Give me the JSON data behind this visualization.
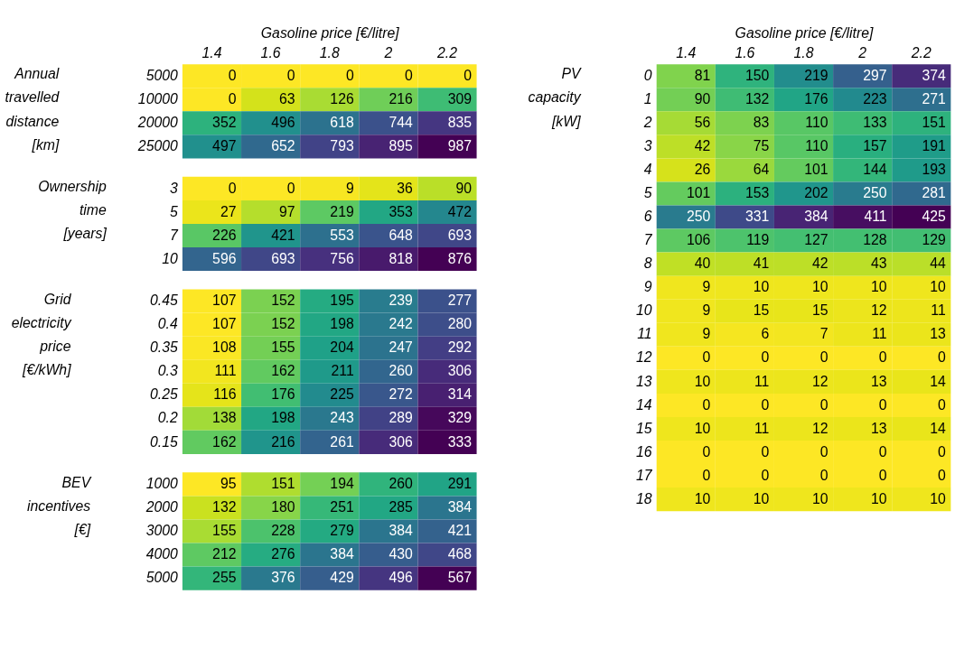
{
  "chart_data": [
    {
      "type": "heatmap",
      "xlabel": "Gasoline price [€/litre]",
      "ylabel": "Annual travelled distance [km]",
      "categories": [
        "1.4",
        "1.6",
        "1.8",
        "2",
        "2.2"
      ],
      "y_categories": [
        "5000",
        "10000",
        "20000",
        "25000"
      ],
      "data_labels": true,
      "cells": [
        [
          0,
          0,
          0,
          0,
          0
        ],
        [
          0,
          63,
          126,
          216,
          309
        ],
        [
          352,
          496,
          618,
          744,
          835
        ],
        [
          497,
          652,
          793,
          895,
          987
        ]
      ]
    },
    {
      "type": "heatmap",
      "ylabel": "Ownership time [years]",
      "categories": [
        "1.4",
        "1.6",
        "1.8",
        "2",
        "2.2"
      ],
      "y_categories": [
        "3",
        "5",
        "7",
        "10"
      ],
      "data_labels": true,
      "tick_labels": "y",
      "cells": [
        [
          0,
          0,
          9,
          36,
          90
        ],
        [
          27,
          97,
          219,
          353,
          472
        ],
        [
          226,
          421,
          553,
          648,
          693
        ],
        [
          596,
          693,
          756,
          818,
          876
        ]
      ]
    },
    {
      "type": "heatmap",
      "ylabel": "Grid electricity price [€/kWh]",
      "categories": [
        "1.4",
        "1.6",
        "1.8",
        "2",
        "2.2"
      ],
      "y_categories": [
        "0.45",
        "0.4",
        "0.35",
        "0.3",
        "0.25",
        "0.2",
        "0.15"
      ],
      "data_labels": true,
      "tick_labels": "y",
      "cells": [
        [
          107,
          152,
          195,
          239,
          277
        ],
        [
          107,
          152,
          198,
          242,
          280
        ],
        [
          108,
          155,
          204,
          247,
          292
        ],
        [
          111,
          162,
          211,
          260,
          306
        ],
        [
          116,
          176,
          225,
          272,
          314
        ],
        [
          138,
          198,
          243,
          289,
          329
        ],
        [
          162,
          216,
          261,
          306,
          333
        ]
      ]
    },
    {
      "type": "heatmap",
      "ylabel": "BEV incentives [€]",
      "categories": [
        "1.4",
        "1.6",
        "1.8",
        "2",
        "2.2"
      ],
      "y_categories": [
        "1000",
        "2000",
        "3000",
        "4000",
        "5000"
      ],
      "data_labels": true,
      "tick_labels": "y",
      "cells": [
        [
          95,
          151,
          194,
          260,
          291
        ],
        [
          132,
          180,
          251,
          285,
          384
        ],
        [
          155,
          228,
          279,
          384,
          421
        ],
        [
          212,
          276,
          384,
          430,
          468
        ],
        [
          255,
          376,
          429,
          496,
          567
        ]
      ]
    },
    {
      "type": "heatmap",
      "xlabel": "Gasoline price [€/litre]",
      "ylabel": "PV capacity [kW]",
      "categories": [
        "1.4",
        "1.6",
        "1.8",
        "2",
        "2.2"
      ],
      "y_categories": [
        "0",
        "1",
        "2",
        "3",
        "4",
        "5",
        "6",
        "7",
        "8",
        "9",
        "10",
        "11",
        "12",
        "13",
        "14",
        "15",
        "16",
        "17",
        "18"
      ],
      "data_labels": true,
      "cells": [
        [
          81,
          150,
          219,
          297,
          374
        ],
        [
          90,
          132,
          176,
          223,
          271
        ],
        [
          56,
          83,
          110,
          133,
          151
        ],
        [
          42,
          75,
          110,
          157,
          191
        ],
        [
          26,
          64,
          101,
          144,
          193
        ],
        [
          101,
          153,
          202,
          250,
          281
        ],
        [
          250,
          331,
          384,
          411,
          425
        ],
        [
          106,
          119,
          127,
          128,
          129
        ],
        [
          40,
          41,
          42,
          43,
          44
        ],
        [
          9,
          10,
          10,
          10,
          10
        ],
        [
          9,
          15,
          15,
          12,
          11
        ],
        [
          9,
          6,
          7,
          11,
          13
        ],
        [
          0,
          0,
          0,
          0,
          0
        ],
        [
          10,
          11,
          12,
          13,
          14
        ],
        [
          0,
          0,
          0,
          0,
          0
        ],
        [
          10,
          11,
          12,
          13,
          14
        ],
        [
          0,
          0,
          0,
          0,
          0
        ],
        [
          0,
          0,
          0,
          0,
          0
        ],
        [
          10,
          10,
          10,
          10,
          10
        ]
      ]
    }
  ]
}
